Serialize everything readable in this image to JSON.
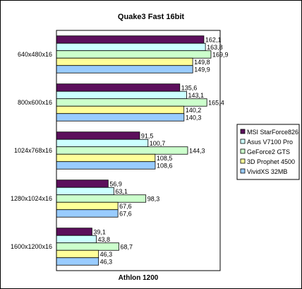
{
  "chart_data": {
    "type": "bar",
    "orientation": "horizontal",
    "title": "Quake3 Fast 16bit",
    "xlabel": "Athlon 1200",
    "ylabel": "",
    "categories": [
      "640x480x16",
      "800x600x16",
      "1024x768x16",
      "1280x1024x16",
      "1600x1200x16"
    ],
    "series": [
      {
        "name": "MSI StarForce826",
        "color": "#5c0f5c",
        "values": [
          162.1,
          135.6,
          91.5,
          56.9,
          39.1
        ],
        "labels": [
          "162,1",
          "135,6",
          "91,5",
          "56,9",
          "39,1"
        ]
      },
      {
        "name": "Asus V7100 Pro",
        "color": "#ccffff",
        "values": [
          163.8,
          143.1,
          100.7,
          63.1,
          43.8
        ],
        "labels": [
          "163,8",
          "143,1",
          "100,7",
          "63,1",
          "43,8"
        ]
      },
      {
        "name": "GeForce2 GTS",
        "color": "#ccffcc",
        "values": [
          169.9,
          165.4,
          144.3,
          98.3,
          68.7
        ],
        "labels": [
          "169,9",
          "165,4",
          "144,3",
          "98,3",
          "68,7"
        ]
      },
      {
        "name": "3D Prophet 4500",
        "color": "#ffff99",
        "values": [
          149.8,
          140.2,
          108.5,
          67.6,
          46.3
        ],
        "labels": [
          "149,8",
          "140,2",
          "108,5",
          "67,6",
          "46,3"
        ]
      },
      {
        "name": "VividXS 32MB",
        "color": "#99ccff",
        "values": [
          149.9,
          140.3,
          108.6,
          67.6,
          46.3
        ],
        "labels": [
          "149,9",
          "140,3",
          "108,6",
          "67,6",
          "46,3"
        ]
      }
    ],
    "xlim": [
      0,
      180
    ],
    "grid": false,
    "legend_position": "right"
  }
}
